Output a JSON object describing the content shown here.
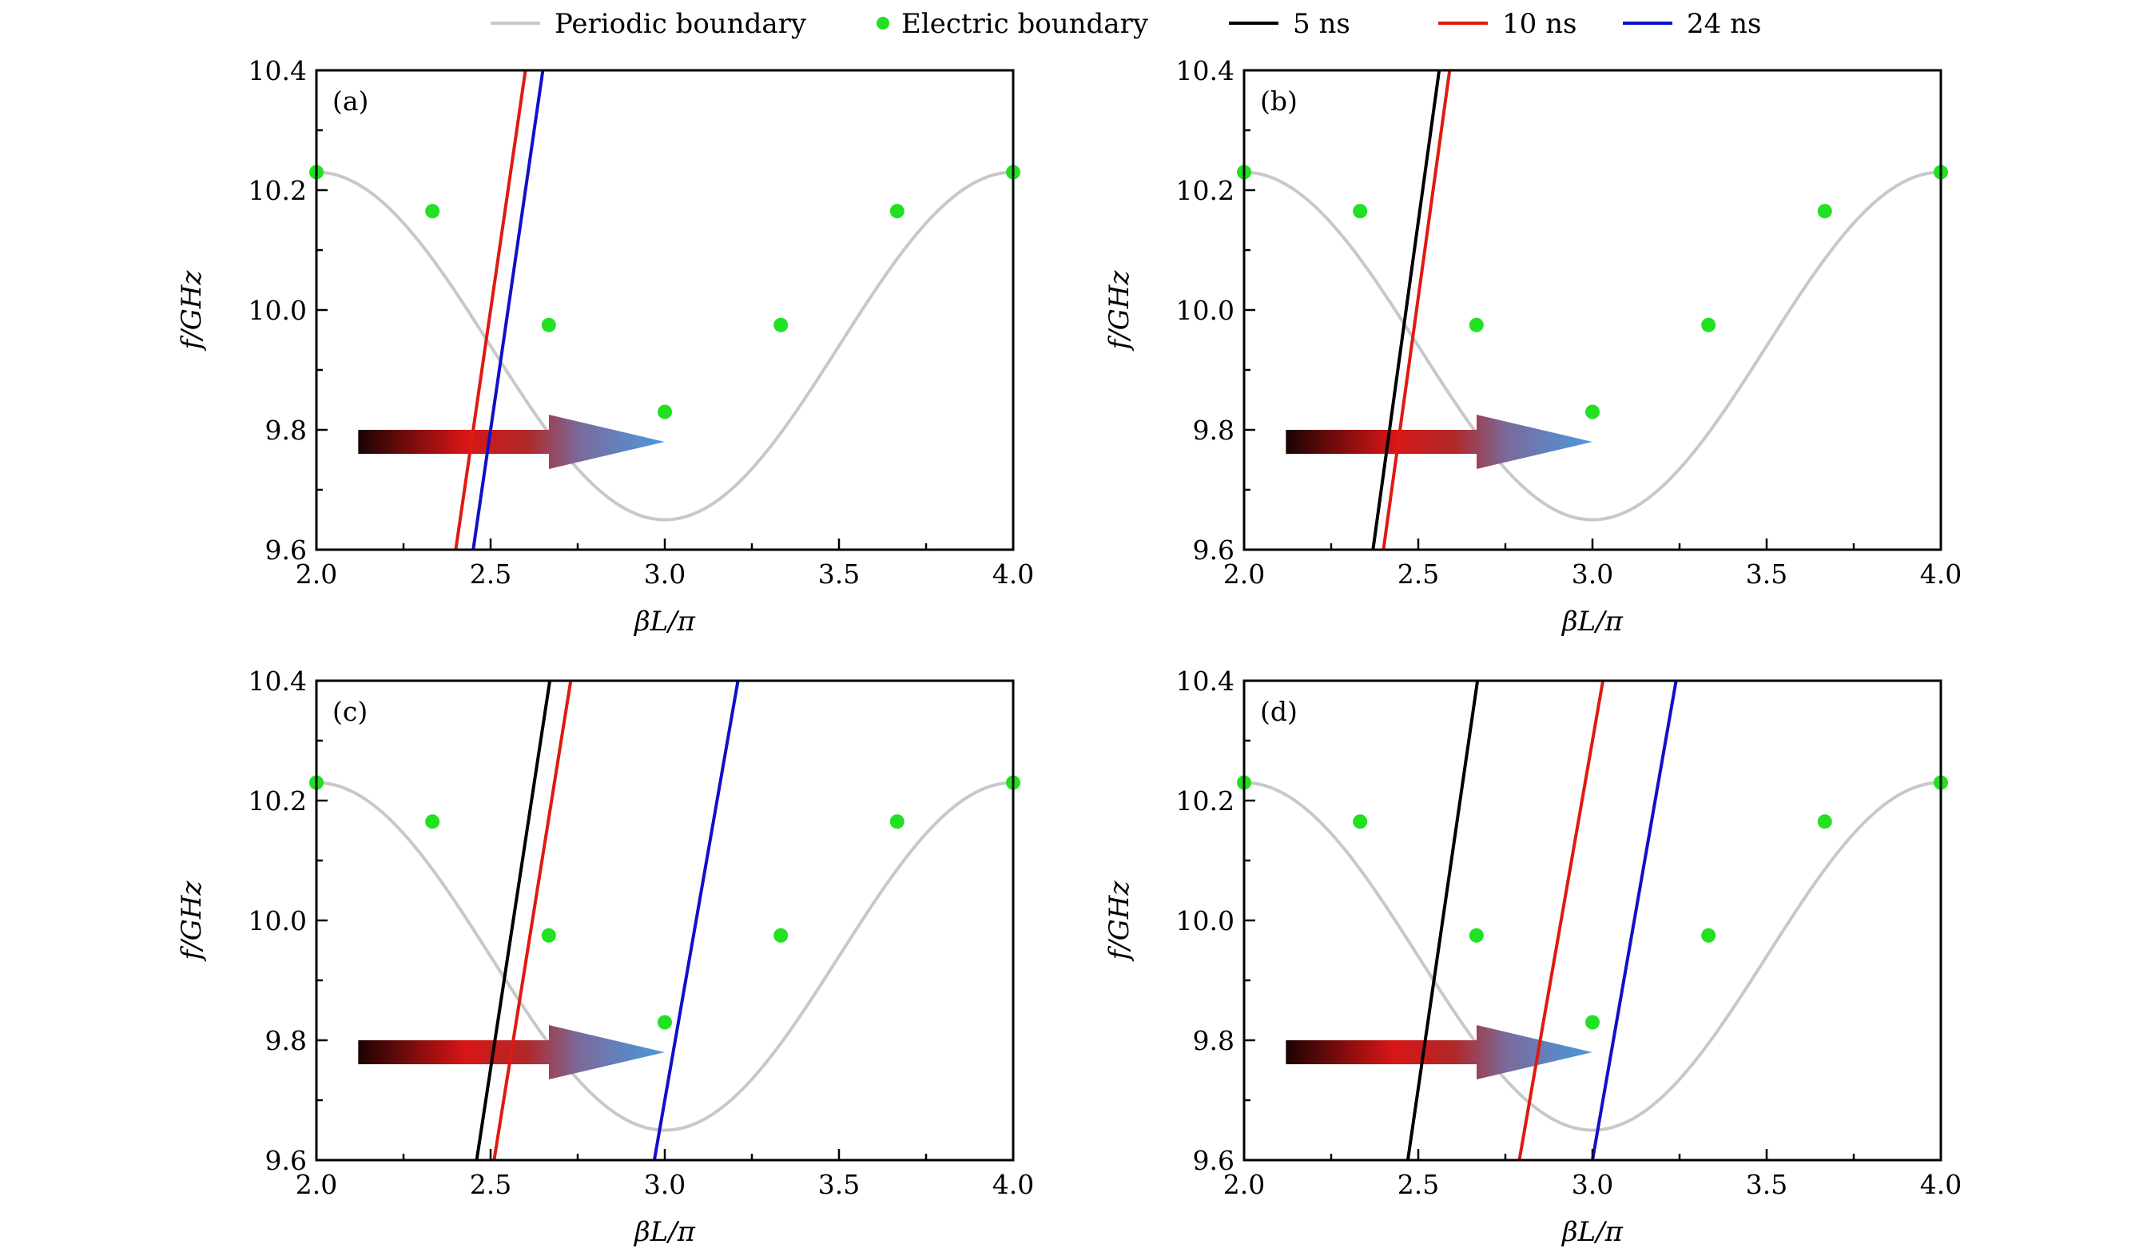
{
  "legend": [
    {
      "label": "Periodic boundary",
      "kind": "line",
      "color": "#c8c8c8"
    },
    {
      "label": "Electric boundary",
      "kind": "dot",
      "color": "#22e022"
    },
    {
      "label": "5 ns",
      "kind": "line",
      "color": "#000000"
    },
    {
      "label": "10 ns",
      "kind": "line",
      "color": "#e01a10"
    },
    {
      "label": "24 ns",
      "kind": "line",
      "color": "#1010c8"
    }
  ],
  "chart_data": [
    {
      "type": "line",
      "panel_label": "(a)",
      "xlabel": "βL/π",
      "ylabel": "f/GHz",
      "xlim": [
        2.0,
        4.0
      ],
      "ylim": [
        9.6,
        10.4
      ],
      "xticks": [
        "2.0",
        "2.5",
        "3.0",
        "3.5",
        "4.0"
      ],
      "yticks": [
        "9.6",
        "9.8",
        "10.0",
        "10.2",
        "10.4"
      ],
      "periodic_boundary": {
        "f_max": 10.23,
        "f_min": 9.65,
        "period_x": 2.0,
        "min_at_x": 3.0
      },
      "electric_boundary": {
        "x": [
          2.0,
          2.333,
          2.667,
          3.0,
          3.333,
          3.667,
          4.0
        ],
        "y": [
          10.23,
          10.165,
          9.975,
          9.83,
          9.975,
          10.165,
          10.23
        ]
      },
      "series": [
        {
          "name": "10 ns",
          "x": [
            2.4,
            2.6
          ],
          "y": [
            9.6,
            10.4
          ]
        },
        {
          "name": "24 ns",
          "x": [
            2.45,
            2.65
          ],
          "y": [
            9.6,
            10.4
          ]
        }
      ],
      "arrow": {
        "x_start": 2.12,
        "x_end": 3.0,
        "y": 9.78
      }
    },
    {
      "type": "line",
      "panel_label": "(b)",
      "xlabel": "βL/π",
      "ylabel": "f/GHz",
      "xlim": [
        2.0,
        4.0
      ],
      "ylim": [
        9.6,
        10.4
      ],
      "xticks": [
        "2.0",
        "2.5",
        "3.0",
        "3.5",
        "4.0"
      ],
      "yticks": [
        "9.6",
        "9.8",
        "10.0",
        "10.2",
        "10.4"
      ],
      "periodic_boundary": {
        "f_max": 10.23,
        "f_min": 9.65,
        "period_x": 2.0,
        "min_at_x": 3.0
      },
      "electric_boundary": {
        "x": [
          2.0,
          2.333,
          2.667,
          3.0,
          3.333,
          3.667,
          4.0
        ],
        "y": [
          10.23,
          10.165,
          9.975,
          9.83,
          9.975,
          10.165,
          10.23
        ]
      },
      "series": [
        {
          "name": "5 ns",
          "x": [
            2.37,
            2.56
          ],
          "y": [
            9.6,
            10.4
          ]
        },
        {
          "name": "10 ns",
          "x": [
            2.4,
            2.59
          ],
          "y": [
            9.6,
            10.4
          ]
        }
      ],
      "arrow": {
        "x_start": 2.12,
        "x_end": 3.0,
        "y": 9.78
      }
    },
    {
      "type": "line",
      "panel_label": "(c)",
      "xlabel": "βL/π",
      "ylabel": "f/GHz",
      "xlim": [
        2.0,
        4.0
      ],
      "ylim": [
        9.6,
        10.4
      ],
      "xticks": [
        "2.0",
        "2.5",
        "3.0",
        "3.5",
        "4.0"
      ],
      "yticks": [
        "9.6",
        "9.8",
        "10.0",
        "10.2",
        "10.4"
      ],
      "periodic_boundary": {
        "f_max": 10.23,
        "f_min": 9.65,
        "period_x": 2.0,
        "min_at_x": 3.0
      },
      "electric_boundary": {
        "x": [
          2.0,
          2.333,
          2.667,
          3.0,
          3.333,
          3.667,
          4.0
        ],
        "y": [
          10.23,
          10.165,
          9.975,
          9.83,
          9.975,
          10.165,
          10.23
        ]
      },
      "series": [
        {
          "name": "5 ns",
          "x": [
            2.46,
            2.67
          ],
          "y": [
            9.6,
            10.4
          ]
        },
        {
          "name": "10 ns",
          "x": [
            2.51,
            2.73
          ],
          "y": [
            9.6,
            10.4
          ]
        },
        {
          "name": "24 ns",
          "x": [
            2.97,
            3.21
          ],
          "y": [
            9.6,
            10.4
          ]
        }
      ],
      "arrow": {
        "x_start": 2.12,
        "x_end": 3.0,
        "y": 9.78
      }
    },
    {
      "type": "line",
      "panel_label": "(d)",
      "xlabel": "βL/π",
      "ylabel": "f/GHz",
      "xlim": [
        2.0,
        4.0
      ],
      "ylim": [
        9.6,
        10.4
      ],
      "xticks": [
        "2.0",
        "2.5",
        "3.0",
        "3.5",
        "4.0"
      ],
      "yticks": [
        "9.6",
        "9.8",
        "10.0",
        "10.2",
        "10.4"
      ],
      "periodic_boundary": {
        "f_max": 10.23,
        "f_min": 9.65,
        "period_x": 2.0,
        "min_at_x": 3.0
      },
      "electric_boundary": {
        "x": [
          2.0,
          2.333,
          2.667,
          3.0,
          3.333,
          4.0,
          3.667
        ],
        "y": [
          10.23,
          10.165,
          9.975,
          9.83,
          9.975,
          10.23,
          10.165
        ]
      },
      "series": [
        {
          "name": "5 ns",
          "x": [
            2.47,
            2.67
          ],
          "y": [
            9.6,
            10.4
          ]
        },
        {
          "name": "10 ns",
          "x": [
            2.79,
            3.03
          ],
          "y": [
            9.6,
            10.4
          ]
        },
        {
          "name": "24 ns",
          "x": [
            3.0,
            3.24
          ],
          "y": [
            9.6,
            10.4
          ]
        }
      ],
      "arrow": {
        "x_start": 2.12,
        "x_end": 3.0,
        "y": 9.78
      }
    }
  ]
}
